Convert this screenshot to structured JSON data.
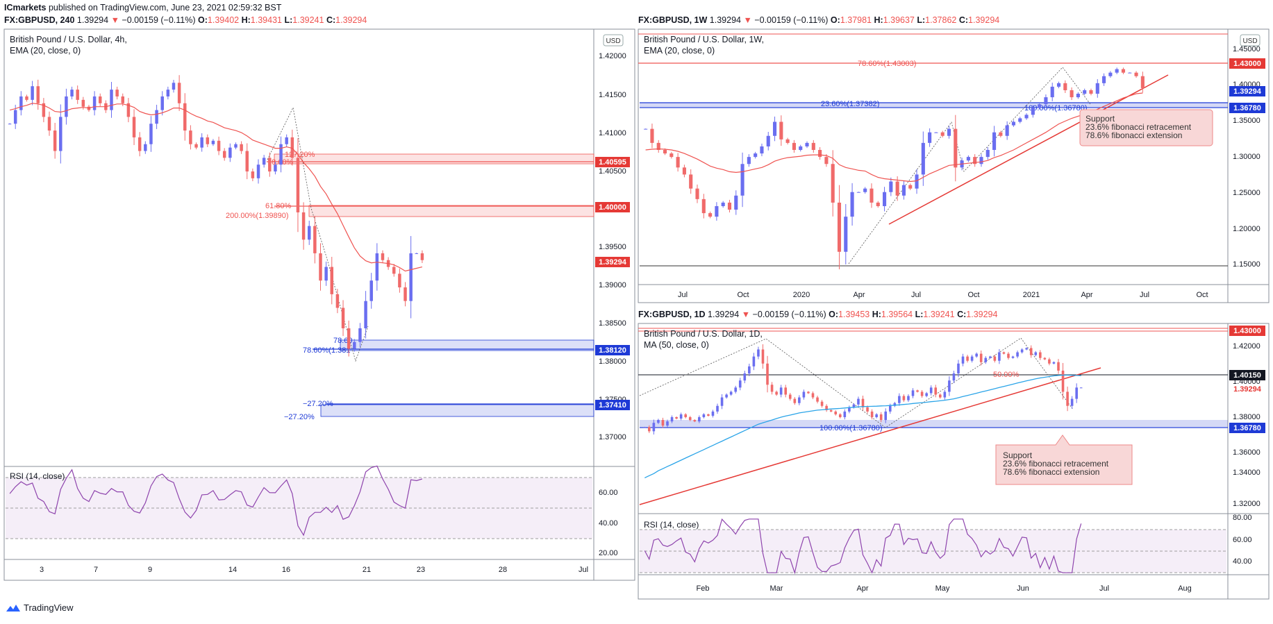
{
  "header": {
    "publisher": "ICmarkets",
    "published_text": "published on TradingView.com, June 23, 2021 02:59:32 BST"
  },
  "footer": {
    "brand": "TradingView"
  },
  "colors": {
    "up": "#6a6ef0",
    "down": "#f06a6a",
    "ema": "#ef5350",
    "ma": "#2aa4e8",
    "rsi": "#8e44ad",
    "accent_red": "#e53935",
    "accent_blue": "#1e3ad6"
  },
  "panels": [
    {
      "id": "h4",
      "symbol_line": {
        "symbol": "FX:GBPUSD, 240",
        "price": "1.39294",
        "arrow": "▼",
        "change": "−0.00159 (−0.11%)",
        "o_label": "O:",
        "o": "1.39402",
        "h_label": "H:",
        "h": "1.39431",
        "l_label": "L:",
        "l": "1.39241",
        "c_label": "C:",
        "c": "1.39294"
      },
      "title": "British Pound / U.S. Dollar, 4h,",
      "indicator": "EMA (20, close, 0)",
      "currency": "USD",
      "rsi_label": "RSI (14, close)",
      "rsi_ticks": [
        "60.00",
        "40.00",
        "20.00"
      ],
      "price_ticks": [
        "1.42000",
        "1.41500",
        "1.41000",
        "1.40500",
        "1.40000",
        "1.39500",
        "1.39000",
        "1.38500",
        "1.38000",
        "1.37500",
        "1.37000"
      ],
      "time_ticks": [
        "3",
        "7",
        "9",
        "14",
        "16",
        "21",
        "23",
        "28",
        "Jul"
      ],
      "price_badges": [
        {
          "text": "1.40595",
          "color": "#e53935"
        },
        {
          "text": "1.40000",
          "color": "#e53935"
        },
        {
          "text": "1.39294",
          "color": "#e53935"
        },
        {
          "text": "1.38120",
          "color": "#1e3ad6"
        },
        {
          "text": "1.37410",
          "color": "#1e3ad6"
        }
      ],
      "annotations": [
        {
          "text": "127.20%",
          "color": "#ef5350"
        },
        {
          "text": "78.60%",
          "color": "#ef5350"
        },
        {
          "text": "61.80%",
          "color": "#ef5350"
        },
        {
          "text": "200.00%(1.39890)",
          "color": "#ef5350"
        },
        {
          "text": "78.60",
          "color": "#1e3ad6"
        },
        {
          "text": "78.60%(1.381",
          "color": "#1e3ad6"
        },
        {
          "text": "−27.20%",
          "color": "#1e3ad6"
        },
        {
          "text": "−27.20%",
          "color": "#1e3ad6"
        }
      ]
    },
    {
      "id": "w1",
      "symbol_line": {
        "symbol": "FX:GBPUSD, 1W",
        "price": "1.39294",
        "arrow": "▼",
        "change": "−0.00159 (−0.11%)",
        "o_label": "O:",
        "o": "1.37981",
        "h_label": "H:",
        "h": "1.39637",
        "l_label": "L:",
        "l": "1.37862",
        "c_label": "C:",
        "c": "1.39294"
      },
      "title": "British Pound / U.S. Dollar, 1W,",
      "indicator": "EMA (20, close, 0)",
      "currency": "USD",
      "price_ticks": [
        "1.45000",
        "1.40000",
        "1.35000",
        "1.30000",
        "1.25000",
        "1.20000",
        "1.15000"
      ],
      "time_ticks": [
        "Jul",
        "Oct",
        "2020",
        "Apr",
        "Jul",
        "Oct",
        "2021",
        "Apr",
        "Jul",
        "Oct"
      ],
      "price_badges": [
        {
          "text": "1.43000",
          "color": "#e53935"
        },
        {
          "text": "1.39294",
          "color": "#1e3ad6"
        },
        {
          "text": "1.36780",
          "color": "#1e3ad6"
        }
      ],
      "annotations": [
        {
          "text": "78.60%(1.43003)",
          "color": "#ef5350"
        },
        {
          "text": "23.60%(1.37382)",
          "color": "#1e3ad6"
        },
        {
          "text": "100.00%(1.36780)",
          "color": "#1e3ad6"
        }
      ],
      "callout": [
        "Support",
        "23.6% fibonacci retracement",
        "78.6% fibonacci extension"
      ]
    },
    {
      "id": "d1",
      "symbol_line": {
        "symbol": "FX:GBPUSD, 1D",
        "price": "1.39294",
        "arrow": "▼",
        "change": "−0.00159 (−0.11%)",
        "o_label": "O:",
        "o": "1.39453",
        "h_label": "H:",
        "h": "1.39564",
        "l_label": "L:",
        "l": "1.39241",
        "c_label": "C:",
        "c": "1.39294"
      },
      "title": "British Pound / U.S. Dollar, 1D,",
      "indicator": "MA (50, close, 0)",
      "rsi_label": "RSI (14, close)",
      "rsi_ticks": [
        "80.00",
        "60.00",
        "40.00"
      ],
      "price_ticks": [
        "1.42000",
        "1.40000",
        "1.38000",
        "1.36000",
        "1.34000",
        "1.32000"
      ],
      "time_ticks": [
        "Feb",
        "Mar",
        "Apr",
        "May",
        "Jun",
        "Jul",
        "Aug"
      ],
      "price_badges": [
        {
          "text": "1.43000",
          "color": "#e53935"
        },
        {
          "text": "1.40150",
          "color": "#131722"
        },
        {
          "text": "1.39294",
          "color": "#e53935"
        },
        {
          "text": "1.36780",
          "color": "#1e3ad6"
        }
      ],
      "annotations": [
        {
          "text": "50.00%",
          "color": "#ef5350"
        },
        {
          "text": "100.00%(1.36780)",
          "color": "#1e3ad6"
        }
      ],
      "callout": [
        "Support",
        "23.6% fibonacci retracement",
        "78.6% fibonacci extension"
      ]
    }
  ],
  "chart_data": [
    {
      "type": "candlestick",
      "title": "British Pound / U.S. Dollar, 4h,",
      "ylim": [
        1.366,
        1.423
      ],
      "close_series": [
        1.413,
        1.415,
        1.417,
        1.4165,
        1.4185,
        1.416,
        1.414,
        1.412,
        1.409,
        1.414,
        1.417,
        1.418,
        1.4165,
        1.4155,
        1.415,
        1.417,
        1.416,
        1.415,
        1.418,
        1.417,
        1.416,
        1.414,
        1.411,
        1.409,
        1.41,
        1.413,
        1.415,
        1.417,
        1.418,
        1.419,
        1.416,
        1.412,
        1.41,
        1.4095,
        1.411,
        1.41,
        1.4105,
        1.409,
        1.408,
        1.4095,
        1.41,
        1.409,
        1.406,
        1.405,
        1.407,
        1.408,
        1.406,
        1.407,
        1.41,
        1.411,
        1.408,
        1.4,
        1.396,
        1.398,
        1.394,
        1.39,
        1.392,
        1.388,
        1.386,
        1.383,
        1.38,
        1.381,
        1.383,
        1.387,
        1.39,
        1.394,
        1.393,
        1.392,
        1.391,
        1.389,
        1.387,
        1.394,
        1.394,
        1.393
      ],
      "ema20": [
        1.415,
        1.4152,
        1.4155,
        1.4157,
        1.416,
        1.4159,
        1.4157,
        1.4153,
        1.4148,
        1.4147,
        1.4149,
        1.4152,
        1.4153,
        1.4154,
        1.4153,
        1.4155,
        1.4155,
        1.4155,
        1.4157,
        1.4159,
        1.4159,
        1.4157,
        1.4154,
        1.4148,
        1.4145,
        1.4143,
        1.4144,
        1.4146,
        1.4149,
        1.4153,
        1.4153,
        1.415,
        1.4145,
        1.4141,
        1.4138,
        1.4134,
        1.4132,
        1.4128,
        1.4124,
        1.4122,
        1.412,
        1.4117,
        1.4112,
        1.4106,
        1.4103,
        1.41,
        1.4097,
        1.4094,
        1.4094,
        1.4096,
        1.4094,
        1.4085,
        1.4073,
        1.4064,
        1.4053,
        1.4038,
        1.4027,
        1.4012,
        1.3998,
        1.3981,
        1.3964,
        1.3948,
        1.3936,
        1.3929,
        1.3926,
        1.3927,
        1.3926,
        1.3925,
        1.3923,
        1.3919,
        1.3914,
        1.3916,
        1.3918,
        1.392
      ],
      "levels": [
        1.40595,
        1.4,
        1.3812,
        1.3741
      ]
    },
    {
      "type": "candlestick",
      "title": "British Pound / U.S. Dollar, 1W,",
      "ylim": [
        1.14,
        1.47
      ],
      "close_series": [
        1.335,
        1.315,
        1.305,
        1.3,
        1.295,
        1.28,
        1.27,
        1.25,
        1.235,
        1.215,
        1.21,
        1.225,
        1.23,
        1.22,
        1.24,
        1.285,
        1.295,
        1.3,
        1.31,
        1.325,
        1.345,
        1.32,
        1.315,
        1.305,
        1.31,
        1.315,
        1.305,
        1.295,
        1.285,
        1.23,
        1.16,
        1.21,
        1.245,
        1.245,
        1.25,
        1.23,
        1.225,
        1.245,
        1.26,
        1.24,
        1.255,
        1.25,
        1.27,
        1.315,
        1.33,
        1.33,
        1.325,
        1.335,
        1.28,
        1.29,
        1.295,
        1.285,
        1.295,
        1.305,
        1.33,
        1.325,
        1.34,
        1.345,
        1.35,
        1.355,
        1.365,
        1.37,
        1.38,
        1.395,
        1.4,
        1.39,
        1.38,
        1.385,
        1.39,
        1.385,
        1.4,
        1.41,
        1.415,
        1.42,
        1.415,
        1.415,
        1.41,
        1.393
      ],
      "ema20": [
        1.305,
        1.306,
        1.3065,
        1.306,
        1.305,
        1.303,
        1.3,
        1.296,
        1.292,
        1.287,
        1.282,
        1.279,
        1.277,
        1.274,
        1.273,
        1.274,
        1.276,
        1.278,
        1.28,
        1.284,
        1.289,
        1.292,
        1.294,
        1.295,
        1.296,
        1.2975,
        1.298,
        1.298,
        1.297,
        1.293,
        1.284,
        1.28,
        1.278,
        1.276,
        1.275,
        1.27,
        1.266,
        1.264,
        1.263,
        1.262,
        1.261,
        1.26,
        1.261,
        1.266,
        1.271,
        1.275,
        1.279,
        1.283,
        1.284,
        1.285,
        1.286,
        1.287,
        1.288,
        1.29,
        1.294,
        1.297,
        1.301,
        1.305,
        1.31,
        1.315,
        1.32,
        1.325,
        1.33,
        1.336,
        1.342,
        1.346,
        1.35,
        1.353,
        1.356,
        1.359,
        1.363,
        1.367,
        1.371,
        1.375,
        1.379,
        1.382,
        1.385,
        1.386
      ],
      "levels": [
        1.43,
        1.37382,
        1.3678
      ]
    },
    {
      "type": "candlestick",
      "title": "British Pound / U.S. Dollar, 1D,",
      "ylim": [
        1.31,
        1.435
      ],
      "close_series": [
        1.365,
        1.362,
        1.368,
        1.37,
        1.366,
        1.369,
        1.372,
        1.371,
        1.374,
        1.372,
        1.37,
        1.369,
        1.372,
        1.374,
        1.373,
        1.376,
        1.38,
        1.386,
        1.388,
        1.39,
        1.393,
        1.398,
        1.403,
        1.408,
        1.415,
        1.42,
        1.41,
        1.395,
        1.39,
        1.388,
        1.393,
        1.388,
        1.385,
        1.382,
        1.386,
        1.39,
        1.389,
        1.386,
        1.383,
        1.38,
        1.377,
        1.376,
        1.374,
        1.372,
        1.376,
        1.379,
        1.381,
        1.385,
        1.379,
        1.376,
        1.372,
        1.374,
        1.37,
        1.376,
        1.38,
        1.382,
        1.387,
        1.384,
        1.387,
        1.391,
        1.39,
        1.387,
        1.389,
        1.393,
        1.388,
        1.386,
        1.39,
        1.398,
        1.403,
        1.41,
        1.415,
        1.412,
        1.415,
        1.417,
        1.411,
        1.414,
        1.415,
        1.412,
        1.418,
        1.417,
        1.414,
        1.415,
        1.418,
        1.42,
        1.421,
        1.416,
        1.418,
        1.414,
        1.413,
        1.41,
        1.411,
        1.405,
        1.39,
        1.38,
        1.385,
        1.393,
        1.393
      ],
      "ma50": [
        1.329,
        1.3305,
        1.332,
        1.334,
        1.3355,
        1.337,
        1.3385,
        1.34,
        1.3415,
        1.343,
        1.3445,
        1.346,
        1.3475,
        1.349,
        1.3505,
        1.352,
        1.3535,
        1.355,
        1.3565,
        1.358,
        1.3595,
        1.361,
        1.3625,
        1.364,
        1.3655,
        1.367,
        1.368,
        1.369,
        1.37,
        1.371,
        1.372,
        1.3728,
        1.3735,
        1.3742,
        1.375,
        1.3755,
        1.376,
        1.3765,
        1.377,
        1.3772,
        1.3775,
        1.3778,
        1.378,
        1.3782,
        1.3785,
        1.3788,
        1.379,
        1.3793,
        1.3795,
        1.3796,
        1.3797,
        1.3798,
        1.38,
        1.3801,
        1.3803,
        1.3805,
        1.3807,
        1.381,
        1.3813,
        1.3817,
        1.382,
        1.3823,
        1.3826,
        1.383,
        1.3833,
        1.3836,
        1.384,
        1.3845,
        1.385,
        1.3858,
        1.3866,
        1.3874,
        1.3882,
        1.389,
        1.3898,
        1.3906,
        1.3914,
        1.3922,
        1.393,
        1.3938,
        1.3946,
        1.3954,
        1.3962,
        1.397,
        1.3978,
        1.3985,
        1.3992,
        1.3998,
        1.4003,
        1.4008,
        1.4013,
        1.4016,
        1.4018,
        1.4018,
        1.4017,
        1.4016,
        1.4015
      ],
      "levels": [
        1.43,
        1.4015,
        1.3678
      ]
    }
  ]
}
